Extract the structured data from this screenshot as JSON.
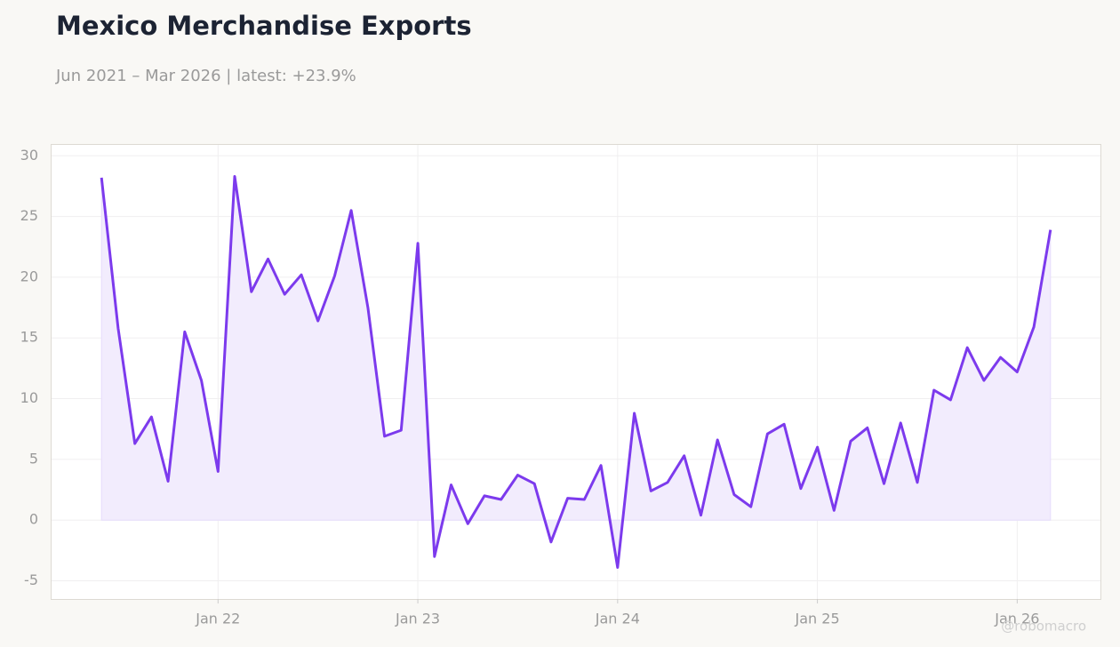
{
  "chart_data": {
    "type": "line",
    "title": "Mexico Merchandise Exports",
    "subtitle": "Jun 2021 – Mar 2026 | latest: +23.9%",
    "watermark": "@robomacro",
    "color": "#7c3aed",
    "area_color": "#f2ecfd",
    "grid": true,
    "x": [
      "2021-06",
      "2021-07",
      "2021-08",
      "2021-09",
      "2021-10",
      "2021-11",
      "2021-12",
      "2022-01",
      "2022-02",
      "2022-03",
      "2022-04",
      "2022-05",
      "2022-06",
      "2022-07",
      "2022-08",
      "2022-09",
      "2022-10",
      "2022-11",
      "2022-12",
      "2023-01",
      "2023-02",
      "2023-03",
      "2023-04",
      "2023-05",
      "2023-06",
      "2023-07",
      "2023-08",
      "2023-09",
      "2023-10",
      "2023-11",
      "2023-12",
      "2024-01",
      "2024-02",
      "2024-03",
      "2024-04",
      "2024-05",
      "2024-06",
      "2024-07",
      "2024-08",
      "2024-09",
      "2024-10",
      "2024-11",
      "2024-12",
      "2025-01",
      "2025-02",
      "2025-03",
      "2025-04",
      "2025-05",
      "2025-06",
      "2025-07",
      "2025-08",
      "2025-09",
      "2025-10",
      "2025-11",
      "2025-12",
      "2026-01",
      "2026-02",
      "2026-03"
    ],
    "values": [
      28.2,
      15.8,
      6.3,
      8.5,
      3.2,
      15.5,
      11.5,
      4.0,
      28.3,
      18.8,
      21.5,
      18.6,
      20.2,
      16.4,
      20.1,
      25.5,
      17.5,
      6.9,
      7.4,
      22.8,
      -3.0,
      2.9,
      -0.3,
      2.0,
      1.7,
      3.7,
      3.0,
      -1.8,
      1.8,
      1.7,
      4.5,
      -3.9,
      8.8,
      2.4,
      3.1,
      5.3,
      0.4,
      6.6,
      2.1,
      1.1,
      7.1,
      7.9,
      2.6,
      6.0,
      0.8,
      6.5,
      7.6,
      3.0,
      8.0,
      3.1,
      10.7,
      9.9,
      14.2,
      11.5,
      13.4,
      12.2,
      15.9,
      23.9
    ],
    "xlim": [
      "2021-03",
      "2026-06"
    ],
    "xticks": [
      {
        "value": "2022-01",
        "label": "Jan 22"
      },
      {
        "value": "2023-01",
        "label": "Jan 23"
      },
      {
        "value": "2024-01",
        "label": "Jan 24"
      },
      {
        "value": "2025-01",
        "label": "Jan 25"
      },
      {
        "value": "2026-01",
        "label": "Jan 26"
      }
    ],
    "ylim": [
      -6.5,
      30.9
    ],
    "yticks": [
      -5,
      0,
      5,
      10,
      15,
      20,
      25,
      30
    ]
  }
}
